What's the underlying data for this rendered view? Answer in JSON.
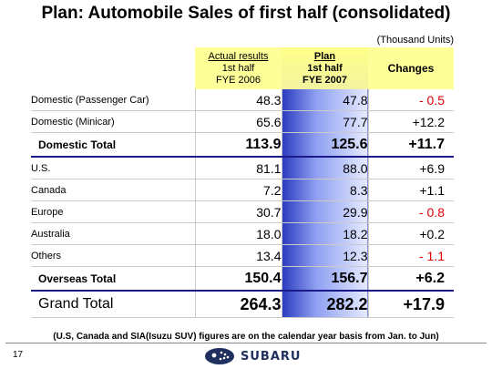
{
  "title": "Plan: Automobile Sales of first half (consolidated)",
  "units": "(Thousand Units)",
  "headers": {
    "actual": [
      "Actual results",
      "1st half",
      "FYE 2006"
    ],
    "plan": [
      "Plan",
      "1st half",
      "FYE 2007"
    ],
    "changes": "Changes"
  },
  "rows": [
    {
      "label": "Domestic (Passenger Car)",
      "actual": "48.3",
      "plan": "47.8",
      "change": "- 0.5",
      "negative": true,
      "kind": "item"
    },
    {
      "label": "Domestic (Minicar)",
      "actual": "65.6",
      "plan": "77.7",
      "change": "+12.2",
      "negative": false,
      "kind": "item"
    },
    {
      "label": "Domestic Total",
      "actual": "113.9",
      "plan": "125.6",
      "change": "+11.7",
      "negative": false,
      "kind": "total"
    },
    {
      "label": "U.S.",
      "actual": "81.1",
      "plan": "88.0",
      "change": "+6.9",
      "negative": false,
      "kind": "item"
    },
    {
      "label": "Canada",
      "actual": "7.2",
      "plan": "8.3",
      "change": "+1.1",
      "negative": false,
      "kind": "item"
    },
    {
      "label": "Europe",
      "actual": "30.7",
      "plan": "29.9",
      "change": "- 0.8",
      "negative": true,
      "kind": "item"
    },
    {
      "label": "Australia",
      "actual": "18.0",
      "plan": "18.2",
      "change": "+0.2",
      "negative": false,
      "kind": "item"
    },
    {
      "label": "Others",
      "actual": "13.4",
      "plan": "12.3",
      "change": "- 1.1",
      "negative": true,
      "kind": "item"
    },
    {
      "label": "Overseas Total",
      "actual": "150.4",
      "plan": "156.7",
      "change": "+6.2",
      "negative": false,
      "kind": "total"
    },
    {
      "label": "Grand Total",
      "actual": "264.3",
      "plan": "282.2",
      "change": "+17.9",
      "negative": false,
      "kind": "grand"
    }
  ],
  "note": "(U.S, Canada and SIA(Isuzu SUV) figures are on the calendar year basis from Jan. to Jun)",
  "page_number": "17",
  "brand": "SUBARU",
  "colors": {
    "negative": "#e00000",
    "header_bg": "#ffff99",
    "plan_gradient_start": "#2a3bbf",
    "total_rule": "#1a1a8a"
  }
}
